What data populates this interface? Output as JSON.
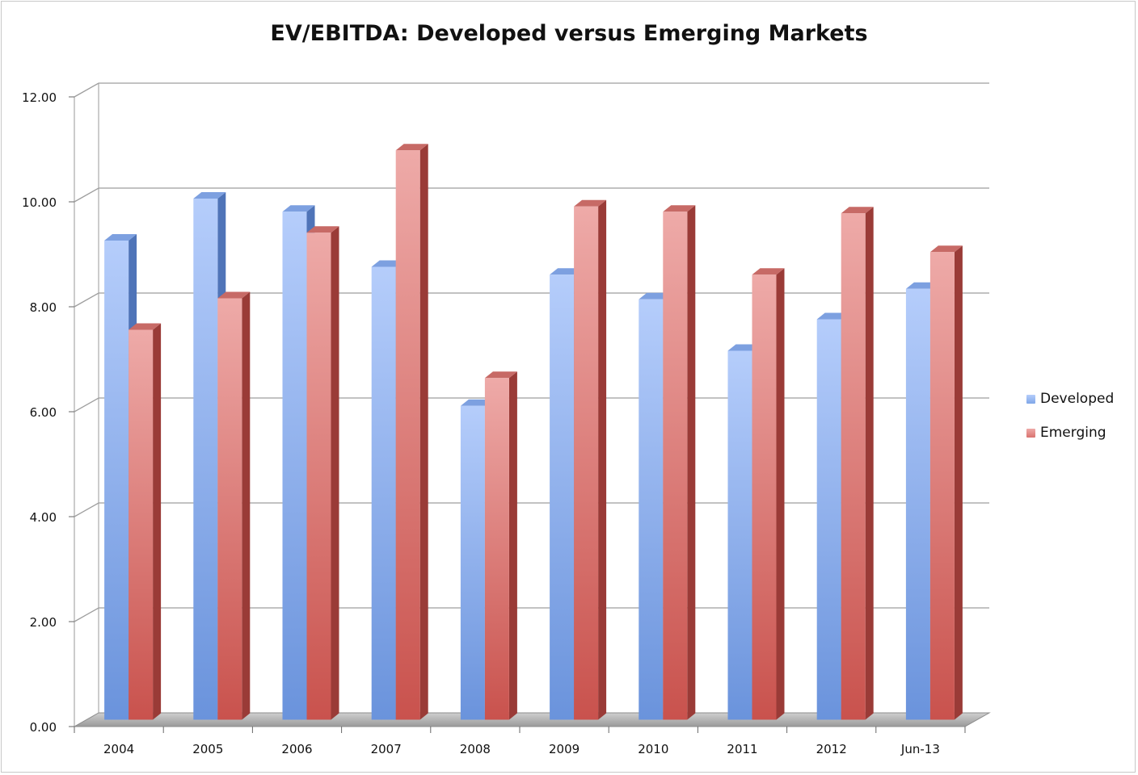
{
  "chart_data": {
    "type": "bar",
    "title": "EV/EBITDA: Developed versus Emerging Markets",
    "categories": [
      "2004",
      "2005",
      "2006",
      "2007",
      "2008",
      "2009",
      "2010",
      "2011",
      "2012",
      "Jun-13"
    ],
    "series": [
      {
        "name": "Developed",
        "values": [
          9.1,
          9.9,
          9.65,
          8.6,
          5.95,
          8.45,
          7.98,
          7.0,
          7.6,
          8.18
        ],
        "color": "#7fa6e8"
      },
      {
        "name": "Emerging",
        "values": [
          7.4,
          8.0,
          9.25,
          10.82,
          6.48,
          9.75,
          9.65,
          8.45,
          9.62,
          8.88
        ],
        "color": "#d9736f"
      }
    ],
    "yticks": [
      "0.00",
      "2.00",
      "4.00",
      "6.00",
      "8.00",
      "10.00",
      "12.00"
    ],
    "ylim": [
      0,
      12
    ],
    "grid": true,
    "legend_position": "right"
  }
}
